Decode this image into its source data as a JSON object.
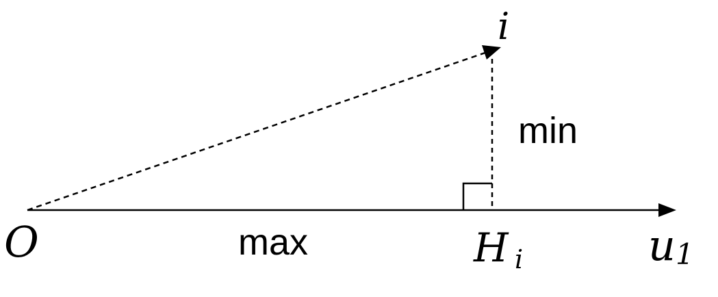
{
  "labels": {
    "origin": "O",
    "point": "i",
    "foot_base": "H",
    "foot_sub": "i",
    "axis_base": "u",
    "axis_sub": "1",
    "max_text": "max",
    "min_text": "min"
  },
  "colors": {
    "ink": "#000000",
    "background": "#ffffff"
  }
}
